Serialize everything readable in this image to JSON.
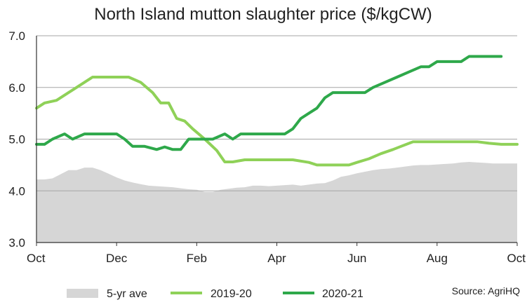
{
  "chart_data": {
    "type": "line",
    "title": "North Island mutton slaughter price ($/kgCW)",
    "xlabel": "",
    "ylabel": "",
    "ylim": [
      3.0,
      7.0
    ],
    "yticks": [
      "3.0",
      "4.0",
      "5.0",
      "6.0",
      "7.0"
    ],
    "xticks": [
      "Oct",
      "Dec",
      "Feb",
      "Apr",
      "Jun",
      "Aug",
      "Oct"
    ],
    "grid": true,
    "legend": "bottom",
    "source": "Source: AgriHQ",
    "series": [
      {
        "name": "5-yr ave",
        "kind": "area",
        "color": "#d6d6d6",
        "points": [
          [
            0,
            4.22
          ],
          [
            0.1,
            4.22
          ],
          [
            0.2,
            4.24
          ],
          [
            0.3,
            4.32
          ],
          [
            0.4,
            4.4
          ],
          [
            0.5,
            4.4
          ],
          [
            0.6,
            4.45
          ],
          [
            0.7,
            4.45
          ],
          [
            0.8,
            4.4
          ],
          [
            0.9,
            4.33
          ],
          [
            1.0,
            4.26
          ],
          [
            1.1,
            4.2
          ],
          [
            1.2,
            4.16
          ],
          [
            1.3,
            4.13
          ],
          [
            1.4,
            4.1
          ],
          [
            1.5,
            4.09
          ],
          [
            1.6,
            4.08
          ],
          [
            1.7,
            4.07
          ],
          [
            1.8,
            4.05
          ],
          [
            1.9,
            4.03
          ],
          [
            2.0,
            4.02
          ],
          [
            2.1,
            3.98
          ],
          [
            2.2,
            3.98
          ],
          [
            2.3,
            4.02
          ],
          [
            2.4,
            4.04
          ],
          [
            2.5,
            4.06
          ],
          [
            2.6,
            4.07
          ],
          [
            2.7,
            4.1
          ],
          [
            2.8,
            4.1
          ],
          [
            2.9,
            4.09
          ],
          [
            3.0,
            4.1
          ],
          [
            3.1,
            4.11
          ],
          [
            3.2,
            4.12
          ],
          [
            3.3,
            4.1
          ],
          [
            3.4,
            4.12
          ],
          [
            3.5,
            4.14
          ],
          [
            3.6,
            4.15
          ],
          [
            3.7,
            4.2
          ],
          [
            3.8,
            4.27
          ],
          [
            3.9,
            4.3
          ],
          [
            4.0,
            4.34
          ],
          [
            4.1,
            4.37
          ],
          [
            4.2,
            4.4
          ],
          [
            4.3,
            4.42
          ],
          [
            4.4,
            4.43
          ],
          [
            4.5,
            4.45
          ],
          [
            4.6,
            4.47
          ],
          [
            4.7,
            4.49
          ],
          [
            4.8,
            4.5
          ],
          [
            4.9,
            4.5
          ],
          [
            5.0,
            4.51
          ],
          [
            5.1,
            4.52
          ],
          [
            5.2,
            4.53
          ],
          [
            5.3,
            4.55
          ],
          [
            5.4,
            4.56
          ],
          [
            5.5,
            4.55
          ],
          [
            5.6,
            4.54
          ],
          [
            5.7,
            4.53
          ],
          [
            5.8,
            4.53
          ],
          [
            6.0,
            4.53
          ]
        ]
      },
      {
        "name": "2019-20",
        "kind": "line",
        "color": "#8fd158",
        "points": [
          [
            0,
            5.6
          ],
          [
            0.1,
            5.7
          ],
          [
            0.25,
            5.75
          ],
          [
            0.4,
            5.9
          ],
          [
            0.55,
            6.05
          ],
          [
            0.7,
            6.2
          ],
          [
            0.85,
            6.2
          ],
          [
            1.0,
            6.2
          ],
          [
            1.15,
            6.2
          ],
          [
            1.3,
            6.1
          ],
          [
            1.45,
            5.9
          ],
          [
            1.55,
            5.7
          ],
          [
            1.65,
            5.7
          ],
          [
            1.75,
            5.4
          ],
          [
            1.85,
            5.35
          ],
          [
            1.95,
            5.2
          ],
          [
            2.1,
            5.0
          ],
          [
            2.25,
            4.78
          ],
          [
            2.35,
            4.56
          ],
          [
            2.45,
            4.56
          ],
          [
            2.6,
            4.6
          ],
          [
            2.8,
            4.6
          ],
          [
            3.0,
            4.6
          ],
          [
            3.2,
            4.6
          ],
          [
            3.4,
            4.55
          ],
          [
            3.5,
            4.5
          ],
          [
            3.7,
            4.5
          ],
          [
            3.9,
            4.5
          ],
          [
            4.0,
            4.55
          ],
          [
            4.15,
            4.62
          ],
          [
            4.3,
            4.72
          ],
          [
            4.45,
            4.8
          ],
          [
            4.55,
            4.86
          ],
          [
            4.7,
            4.95
          ],
          [
            4.9,
            4.95
          ],
          [
            5.1,
            4.95
          ],
          [
            5.3,
            4.95
          ],
          [
            5.5,
            4.95
          ],
          [
            5.65,
            4.92
          ],
          [
            5.8,
            4.9
          ],
          [
            6.0,
            4.9
          ]
        ]
      },
      {
        "name": "2020-21",
        "kind": "line",
        "color": "#2ea84a",
        "points": [
          [
            0,
            4.9
          ],
          [
            0.1,
            4.9
          ],
          [
            0.2,
            5.0
          ],
          [
            0.35,
            5.1
          ],
          [
            0.45,
            5.0
          ],
          [
            0.6,
            5.1
          ],
          [
            0.75,
            5.1
          ],
          [
            0.9,
            5.1
          ],
          [
            1.0,
            5.1
          ],
          [
            1.1,
            5.0
          ],
          [
            1.2,
            4.86
          ],
          [
            1.35,
            4.86
          ],
          [
            1.5,
            4.8
          ],
          [
            1.6,
            4.85
          ],
          [
            1.7,
            4.8
          ],
          [
            1.8,
            4.8
          ],
          [
            1.9,
            5.0
          ],
          [
            2.0,
            5.0
          ],
          [
            2.1,
            5.0
          ],
          [
            2.2,
            5.0
          ],
          [
            2.35,
            5.1
          ],
          [
            2.45,
            5.0
          ],
          [
            2.55,
            5.1
          ],
          [
            2.75,
            5.1
          ],
          [
            3.0,
            5.1
          ],
          [
            3.1,
            5.1
          ],
          [
            3.2,
            5.2
          ],
          [
            3.3,
            5.4
          ],
          [
            3.4,
            5.5
          ],
          [
            3.5,
            5.6
          ],
          [
            3.6,
            5.8
          ],
          [
            3.7,
            5.9
          ],
          [
            3.85,
            5.9
          ],
          [
            4.0,
            5.9
          ],
          [
            4.1,
            5.9
          ],
          [
            4.2,
            6.0
          ],
          [
            4.35,
            6.1
          ],
          [
            4.5,
            6.2
          ],
          [
            4.65,
            6.3
          ],
          [
            4.8,
            6.4
          ],
          [
            4.9,
            6.4
          ],
          [
            5.0,
            6.5
          ],
          [
            5.15,
            6.5
          ],
          [
            5.3,
            6.5
          ],
          [
            5.4,
            6.6
          ],
          [
            5.55,
            6.6
          ],
          [
            5.7,
            6.6
          ],
          [
            5.8,
            6.6
          ]
        ]
      }
    ]
  }
}
